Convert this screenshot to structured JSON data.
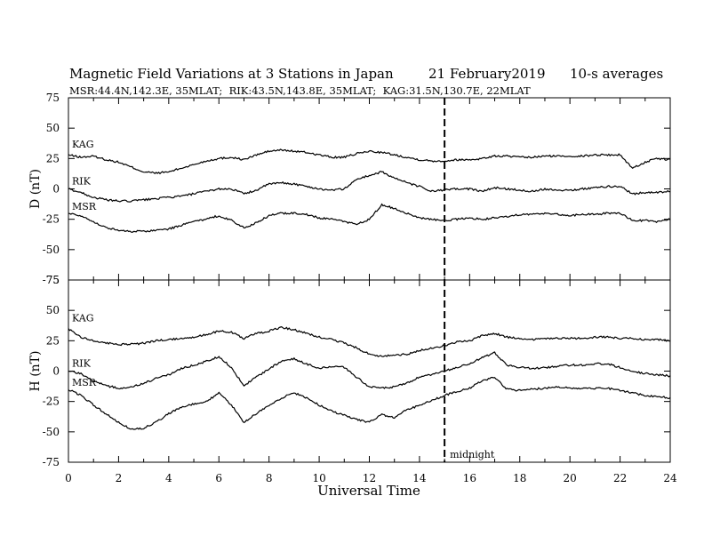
{
  "chart_data": {
    "type": "line",
    "title": "Magnetic Field Variations at 3 Stations in Japan",
    "date": "21 February2019",
    "averaging": "10-s averages",
    "subtitle": "MSR:44.4N,142.3E, 35MLAT;  RIK:43.5N,143.8E, 35MLAT;  KAG:31.5N,130.7E, 22MLAT",
    "xlabel": "Universal Time",
    "xlim": [
      0,
      24
    ],
    "x_ticks": [
      0,
      2,
      4,
      6,
      8,
      10,
      12,
      14,
      16,
      18,
      20,
      22,
      24
    ],
    "marker": {
      "x": 15,
      "label": "midnight",
      "style": "dashed"
    },
    "panels": [
      {
        "ylabel": "D (nT)",
        "ylim": [
          -75,
          75
        ],
        "y_ticks": [
          75,
          50,
          25,
          0,
          -25,
          -50,
          -75
        ],
        "x": [
          0,
          0.5,
          1,
          1.5,
          2,
          2.5,
          3,
          3.5,
          4,
          4.5,
          5,
          5.5,
          6,
          6.5,
          7,
          7.5,
          8,
          8.5,
          9,
          9.5,
          10,
          10.5,
          11,
          11.5,
          12,
          12.5,
          13,
          13.5,
          14,
          14.5,
          15,
          15.5,
          16,
          16.5,
          17,
          17.5,
          18,
          18.5,
          19,
          19.5,
          20,
          20.5,
          21,
          21.5,
          22,
          22.5,
          23,
          23.5,
          24
        ],
        "series": [
          {
            "name": "KAG",
            "values": [
              28,
              26,
              27,
              24,
              22,
              18,
              14,
              13,
              14,
              17,
              20,
              23,
              25,
              26,
              24,
              28,
              31,
              32,
              31,
              30,
              28,
              26,
              26,
              29,
              31,
              30,
              28,
              26,
              24,
              23,
              23,
              24,
              24,
              25,
              27,
              27,
              26,
              26,
              27,
              27,
              27,
              27,
              28,
              28,
              28,
              17,
              22,
              25,
              24
            ]
          },
          {
            "name": "RIK",
            "values": [
              0,
              -3,
              -7,
              -9,
              -10,
              -10,
              -9,
              -8,
              -7,
              -6,
              -4,
              -2,
              0,
              0,
              -4,
              -1,
              4,
              5,
              4,
              2,
              0,
              -1,
              0,
              8,
              11,
              14,
              9,
              5,
              2,
              -2,
              -1,
              0,
              0,
              -2,
              1,
              0,
              -1,
              -2,
              0,
              -1,
              -1,
              0,
              1,
              2,
              2,
              -4,
              -3,
              -3,
              -2
            ]
          },
          {
            "name": "MSR",
            "values": [
              -20,
              -22,
              -27,
              -32,
              -34,
              -35,
              -35,
              -34,
              -33,
              -30,
              -27,
              -25,
              -22,
              -26,
              -32,
              -28,
              -22,
              -20,
              -20,
              -21,
              -24,
              -25,
              -27,
              -29,
              -25,
              -13,
              -16,
              -20,
              -24,
              -25,
              -26,
              -25,
              -24,
              -25,
              -24,
              -23,
              -21,
              -21,
              -20,
              -21,
              -22,
              -21,
              -21,
              -20,
              -20,
              -26,
              -26,
              -27,
              -25
            ]
          }
        ]
      },
      {
        "ylabel": "H (nT)",
        "ylim": [
          -75,
          75
        ],
        "y_ticks": [
          75,
          50,
          25,
          0,
          -25,
          -50,
          -75
        ],
        "x": [
          0,
          0.5,
          1,
          1.5,
          2,
          2.5,
          3,
          3.5,
          4,
          4.5,
          5,
          5.5,
          6,
          6.5,
          7,
          7.5,
          8,
          8.5,
          9,
          9.5,
          10,
          10.5,
          11,
          11.5,
          12,
          12.5,
          13,
          13.5,
          14,
          14.5,
          15,
          15.5,
          16,
          16.5,
          17,
          17.5,
          18,
          18.5,
          19,
          19.5,
          20,
          20.5,
          21,
          21.5,
          22,
          22.5,
          23,
          23.5,
          24
        ],
        "series": [
          {
            "name": "KAG",
            "values": [
              35,
              28,
              25,
              23,
              22,
              22,
              23,
              25,
              26,
              27,
              28,
              30,
              33,
              32,
              27,
              31,
              33,
              36,
              34,
              31,
              28,
              26,
              23,
              19,
              14,
              12,
              13,
              14,
              17,
              19,
              21,
              24,
              25,
              29,
              31,
              28,
              27,
              26,
              27,
              27,
              27,
              27,
              28,
              28,
              27,
              27,
              26,
              26,
              25
            ]
          },
          {
            "name": "RIK",
            "values": [
              0,
              -2,
              -8,
              -12,
              -14,
              -13,
              -10,
              -6,
              -3,
              2,
              5,
              8,
              12,
              3,
              -12,
              -5,
              2,
              8,
              10,
              6,
              2,
              4,
              3,
              -5,
              -13,
              -14,
              -13,
              -10,
              -5,
              -3,
              0,
              3,
              6,
              11,
              15,
              5,
              3,
              2,
              3,
              4,
              5,
              5,
              6,
              6,
              3,
              0,
              -2,
              -3,
              -4
            ]
          },
          {
            "name": "MSR",
            "values": [
              -15,
              -20,
              -28,
              -35,
              -42,
              -48,
              -47,
              -42,
              -35,
              -30,
              -27,
              -25,
              -18,
              -28,
              -42,
              -35,
              -28,
              -22,
              -18,
              -22,
              -28,
              -33,
              -36,
              -40,
              -42,
              -36,
              -38,
              -32,
              -28,
              -24,
              -20,
              -17,
              -14,
              -8,
              -5,
              -15,
              -16,
              -15,
              -14,
              -13,
              -14,
              -14,
              -14,
              -14,
              -16,
              -18,
              -20,
              -21,
              -22
            ]
          }
        ]
      }
    ]
  }
}
